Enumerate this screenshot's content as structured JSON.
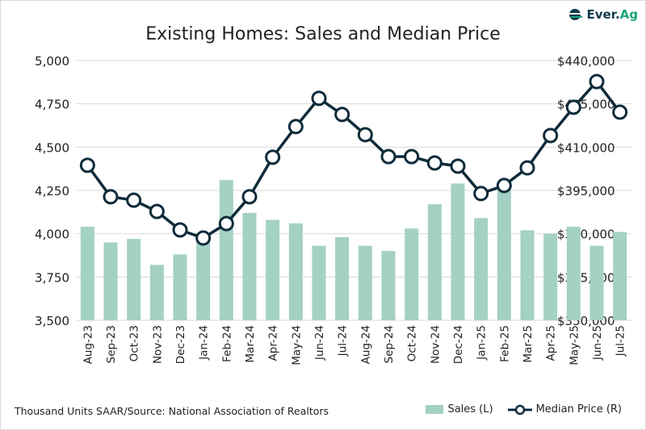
{
  "logo": {
    "text_main": "Ever.",
    "text_accent": "Ag"
  },
  "footer": "Thousand Units SAAR/Source: National Association of Realtors",
  "colors": {
    "bars": "#a3d1c3",
    "line": "#0f2b3a",
    "grid": "#d9d9d9"
  },
  "chart_data": {
    "type": "bar+line",
    "title": "Existing Homes: Sales and Median Price",
    "categories": [
      "Aug-23",
      "Sep-23",
      "Oct-23",
      "Nov-23",
      "Dec-23",
      "Jan-24",
      "Feb-24",
      "Mar-24",
      "Apr-24",
      "May-24",
      "Jun-24",
      "Jul-24",
      "Aug-24",
      "Sep-24",
      "Oct-24",
      "Nov-24",
      "Dec-24",
      "Jan-25",
      "Feb-25",
      "Mar-25",
      "Apr-25",
      "May-25",
      "Jun-25",
      "Jul-25"
    ],
    "left_axis": {
      "ylim": [
        3500,
        5000
      ],
      "ticks": [
        "3,500",
        "3,750",
        "4,000",
        "4,250",
        "4,500",
        "4,750",
        "5,000"
      ],
      "tick_values": [
        3500,
        3750,
        4000,
        4250,
        4500,
        4750,
        5000
      ]
    },
    "right_axis": {
      "ylim": [
        350000,
        440000
      ],
      "ticks": [
        "$350,000",
        "$365,000",
        "$380,000",
        "$395,000",
        "$410,000",
        "$425,000",
        "$440,000"
      ],
      "tick_values": [
        350000,
        365000,
        380000,
        395000,
        410000,
        425000,
        440000
      ]
    },
    "grid": true,
    "legend_position": "bottom-right",
    "series": [
      {
        "name": "Sales (L)",
        "type": "bar",
        "axis": "left",
        "values": [
          4040,
          3950,
          3970,
          3820,
          3880,
          4000,
          4310,
          4120,
          4080,
          4060,
          3930,
          3980,
          3930,
          3900,
          4030,
          4170,
          4290,
          4090,
          4260,
          4020,
          4000,
          4040,
          3930,
          4010
        ]
      },
      {
        "name": "Median Price (R)",
        "type": "line",
        "axis": "right",
        "values": [
          403700,
          392800,
          391600,
          387700,
          381300,
          378500,
          383500,
          392800,
          406500,
          417100,
          426900,
          421300,
          414300,
          406700,
          406700,
          404500,
          403400,
          393900,
          396700,
          402800,
          414000,
          423800,
          432700,
          422100
        ]
      }
    ]
  }
}
